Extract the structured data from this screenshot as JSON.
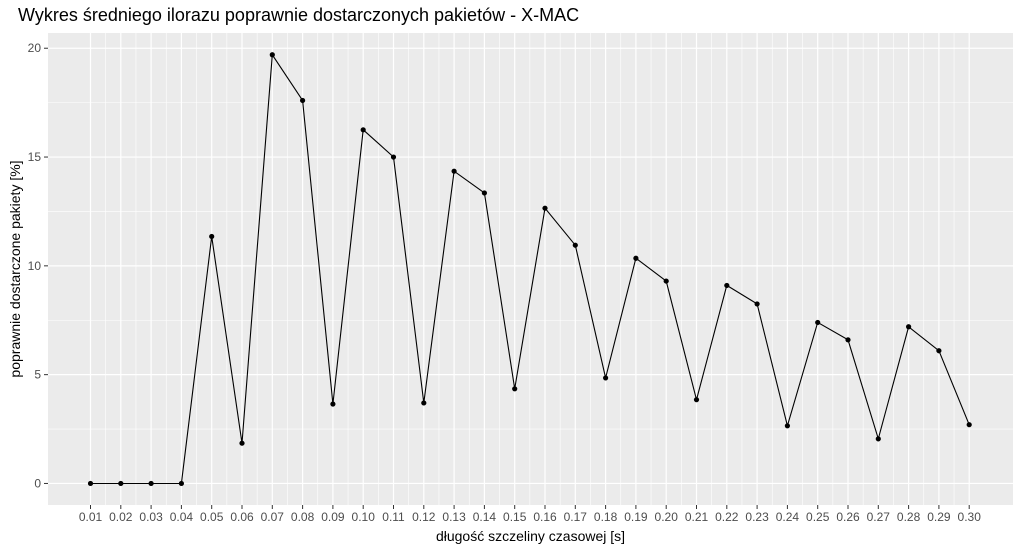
{
  "chart_data": {
    "type": "line",
    "title": "Wykres średniego ilorazu poprawnie dostarczonych pakietów - X-MAC",
    "xlabel": "długość szczeliny czasowej [s]",
    "ylabel": "poprawnie dostarczone pakiety [%]",
    "x": [
      "0.01",
      "0.02",
      "0.03",
      "0.04",
      "0.05",
      "0.06",
      "0.07",
      "0.08",
      "0.09",
      "0.10",
      "0.11",
      "0.12",
      "0.13",
      "0.14",
      "0.15",
      "0.16",
      "0.17",
      "0.18",
      "0.19",
      "0.20",
      "0.21",
      "0.22",
      "0.23",
      "0.24",
      "0.25",
      "0.26",
      "0.27",
      "0.28",
      "0.29",
      "0.30"
    ],
    "values": [
      0,
      0,
      0,
      0,
      11.35,
      1.85,
      19.7,
      17.6,
      3.65,
      16.25,
      15.0,
      3.7,
      14.35,
      13.35,
      4.35,
      12.65,
      10.95,
      4.85,
      10.35,
      9.3,
      3.85,
      9.1,
      8.25,
      2.65,
      7.4,
      6.6,
      2.05,
      7.2,
      6.1,
      2.7
    ],
    "yticks": [
      "0",
      "5",
      "10",
      "15",
      "20"
    ],
    "ylim": [
      -0.99,
      20.7
    ],
    "grid": true,
    "legend": "none",
    "colors": {
      "panel": "#ebebeb",
      "grid_major": "#ffffff",
      "line": "#000000",
      "tick_text": "#4d4d4d",
      "tick_mark": "#333333"
    }
  }
}
